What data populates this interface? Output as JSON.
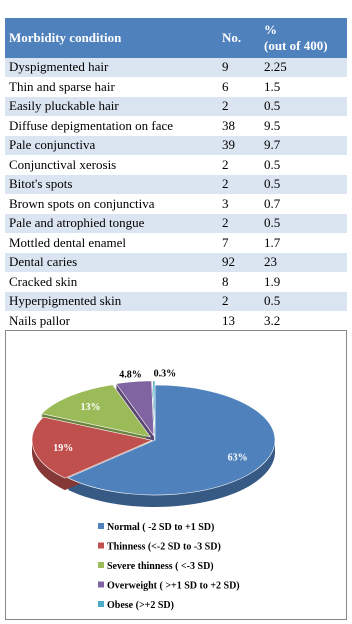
{
  "table": {
    "header": [
      "Morbidity condition",
      "No.",
      [
        "%",
        "(out of 400)"
      ]
    ],
    "rows": [
      [
        "Dyspigmented hair",
        9,
        2.25
      ],
      [
        "Thin and sparse hair",
        6,
        1.5
      ],
      [
        "Easily pluckable hair",
        2,
        0.5
      ],
      [
        "Diffuse depigmentation on face",
        38,
        9.5
      ],
      [
        "Pale conjunctiva",
        39,
        9.7
      ],
      [
        "Conjunctival xerosis",
        2,
        0.5
      ],
      [
        "Bitot's spots",
        2,
        0.5
      ],
      [
        "Brown spots on conjunctiva",
        3,
        0.7
      ],
      [
        "Pale and atrophied tongue",
        2,
        0.5
      ],
      [
        "Mottled dental enamel",
        7,
        1.7
      ],
      [
        "Dental caries",
        92,
        23
      ],
      [
        "Cracked skin",
        8,
        1.9
      ],
      [
        "Hyperpigmented skin",
        2,
        0.5
      ],
      [
        "Nails pallor",
        13,
        3.2
      ]
    ]
  },
  "chart_data": {
    "type": "pie",
    "categories": [
      "Normal ( -2 SD to +1 SD)",
      "Thinness (<-2 SD to -3 SD)",
      "Severe thinness ( <-3 SD)",
      "Overweight ( >+1 SD to +2 SD)",
      "Obese (>+2 SD)"
    ],
    "values": [
      63,
      19,
      13,
      4.8,
      0.3
    ],
    "value_labels": [
      "63%",
      "19%",
      "13%",
      "4.8%",
      "0.3%"
    ],
    "colors": [
      "#4f81bd",
      "#c0504d",
      "#9bbb59",
      "#8064a2",
      "#4bacc6"
    ]
  }
}
